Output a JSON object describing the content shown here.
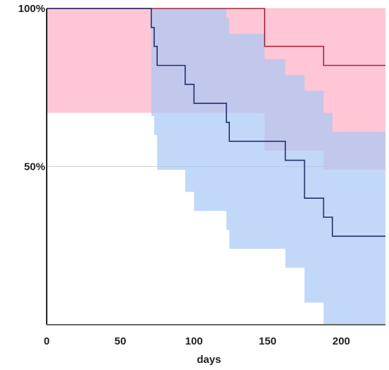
{
  "chart_data": {
    "type": "line",
    "title": "",
    "xlabel": "days",
    "ylabel": "",
    "xlim": [
      0,
      230
    ],
    "ylim": [
      0,
      100
    ],
    "x_ticks": [
      0,
      50,
      100,
      150,
      200
    ],
    "x_tick_labels": [
      "0",
      "50",
      "100",
      "150",
      "200"
    ],
    "y_ticks": [
      50,
      100
    ],
    "y_tick_labels": [
      "50%",
      "100%"
    ],
    "gridlines_y": [
      50,
      100
    ],
    "legend": "none",
    "series": [
      {
        "color": "#a0283c",
        "band_color": "#ffc0d0",
        "band_opacity": 0.9,
        "steps": [
          [
            0,
            100
          ],
          [
            148,
            100
          ],
          [
            148,
            88
          ],
          [
            188,
            88
          ],
          [
            188,
            82
          ],
          [
            230,
            82
          ]
        ],
        "band_upper": [
          [
            0,
            100
          ],
          [
            230,
            100
          ]
        ],
        "band_lower": [
          [
            0,
            67
          ],
          [
            148,
            67
          ],
          [
            148,
            55
          ],
          [
            188,
            55
          ],
          [
            188,
            49
          ],
          [
            230,
            49
          ]
        ]
      },
      {
        "color": "#22306a",
        "band_color": "#a8c8f5",
        "band_opacity": 0.7,
        "steps": [
          [
            0,
            100
          ],
          [
            71,
            100
          ],
          [
            71,
            94
          ],
          [
            73,
            94
          ],
          [
            73,
            88
          ],
          [
            75,
            88
          ],
          [
            75,
            82
          ],
          [
            94,
            82
          ],
          [
            94,
            76
          ],
          [
            100,
            76
          ],
          [
            100,
            70
          ],
          [
            122,
            70
          ],
          [
            122,
            64
          ],
          [
            124,
            64
          ],
          [
            124,
            58
          ],
          [
            162,
            58
          ],
          [
            162,
            52
          ],
          [
            175,
            52
          ],
          [
            175,
            40
          ],
          [
            188,
            40
          ],
          [
            188,
            34
          ],
          [
            194,
            34
          ],
          [
            194,
            28
          ],
          [
            230,
            28
          ]
        ],
        "band_upper": [
          [
            0,
            100
          ],
          [
            122,
            100
          ],
          [
            122,
            97
          ],
          [
            124,
            97
          ],
          [
            124,
            92
          ],
          [
            148,
            92
          ],
          [
            148,
            84
          ],
          [
            162,
            84
          ],
          [
            162,
            79
          ],
          [
            175,
            79
          ],
          [
            175,
            74
          ],
          [
            188,
            74
          ],
          [
            188,
            67
          ],
          [
            194,
            67
          ],
          [
            194,
            61
          ],
          [
            230,
            61
          ]
        ],
        "band_lower": [
          [
            71,
            66
          ],
          [
            73,
            66
          ],
          [
            73,
            60
          ],
          [
            75,
            60
          ],
          [
            75,
            49
          ],
          [
            94,
            49
          ],
          [
            94,
            42
          ],
          [
            100,
            42
          ],
          [
            100,
            36
          ],
          [
            122,
            36
          ],
          [
            122,
            30
          ],
          [
            124,
            30
          ],
          [
            124,
            24
          ],
          [
            162,
            24
          ],
          [
            162,
            18
          ],
          [
            175,
            18
          ],
          [
            175,
            7
          ],
          [
            188,
            7
          ],
          [
            188,
            0
          ],
          [
            230,
            0
          ]
        ]
      }
    ]
  }
}
